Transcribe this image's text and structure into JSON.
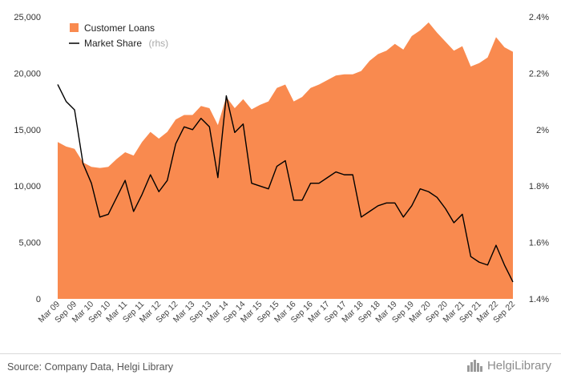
{
  "chart_data": {
    "type": "area",
    "x": [
      "Mar 09",
      "Jun 09",
      "Sep 09",
      "Dec 09",
      "Mar 10",
      "Jun 10",
      "Sep 10",
      "Dec 10",
      "Mar 11",
      "Jun 11",
      "Sep 11",
      "Dec 11",
      "Mar 12",
      "Jun 12",
      "Sep 12",
      "Dec 12",
      "Mar 13",
      "Jun 13",
      "Sep 13",
      "Dec 13",
      "Mar 14",
      "Jun 14",
      "Sep 14",
      "Dec 14",
      "Mar 15",
      "Jun 15",
      "Sep 15",
      "Dec 15",
      "Mar 16",
      "Jun 16",
      "Sep 16",
      "Dec 16",
      "Mar 17",
      "Jun 17",
      "Sep 17",
      "Dec 17",
      "Mar 18",
      "Jun 18",
      "Sep 18",
      "Dec 18",
      "Mar 19",
      "Jun 19",
      "Sep 19",
      "Dec 19",
      "Mar 20",
      "Jun 20",
      "Sep 20",
      "Dec 20",
      "Mar 21",
      "Jun 21",
      "Sep 21",
      "Dec 21",
      "Mar 22",
      "Jun 22",
      "Sep 22"
    ],
    "x_tick_labels": [
      "Mar 09",
      "Sep 09",
      "Mar 10",
      "Sep 10",
      "Mar 11",
      "Sep 11",
      "Mar 12",
      "Sep 12",
      "Mar 13",
      "Sep 13",
      "Mar 14",
      "Sep 14",
      "Mar 15",
      "Sep 15",
      "Mar 16",
      "Sep 16",
      "Mar 17",
      "Sep 17",
      "Mar 18",
      "Sep 18",
      "Mar 19",
      "Sep 19",
      "Mar 20",
      "Sep 20",
      "Mar 21",
      "Sep 21",
      "Mar 22",
      "Sep 22"
    ],
    "series": [
      {
        "name": "Customer Loans",
        "axis": "left",
        "type": "area",
        "color": "#f98a4f",
        "values": [
          13900,
          13500,
          13300,
          12100,
          11700,
          11600,
          11700,
          12400,
          13000,
          12700,
          13900,
          14800,
          14200,
          14800,
          15900,
          16300,
          16300,
          17100,
          16900,
          15400,
          17900,
          16900,
          17700,
          16800,
          17200,
          17500,
          18700,
          19000,
          17500,
          17900,
          18700,
          19000,
          19400,
          19800,
          19900,
          19900,
          20200,
          21100,
          21700,
          22000,
          22600,
          22100,
          23300,
          23800,
          24500,
          23600,
          22800,
          22000,
          22400,
          20600,
          20900,
          21400,
          23200,
          22300,
          21900
        ]
      },
      {
        "name": "Market Share",
        "name_suffix": "(rhs)",
        "axis": "right",
        "type": "line",
        "color": "#000000",
        "values": [
          2.16,
          2.1,
          2.07,
          1.88,
          1.81,
          1.69,
          1.7,
          1.76,
          1.82,
          1.71,
          1.77,
          1.84,
          1.78,
          1.82,
          1.95,
          2.01,
          2.0,
          2.04,
          2.01,
          1.83,
          2.12,
          1.99,
          2.02,
          1.81,
          1.8,
          1.79,
          1.87,
          1.89,
          1.75,
          1.75,
          1.81,
          1.81,
          1.83,
          1.85,
          1.84,
          1.84,
          1.69,
          1.71,
          1.73,
          1.74,
          1.74,
          1.69,
          1.73,
          1.79,
          1.78,
          1.76,
          1.72,
          1.67,
          1.7,
          1.55,
          1.53,
          1.52,
          1.59,
          1.52,
          1.46
        ]
      }
    ],
    "y_left": {
      "ticks": [
        0,
        5000,
        10000,
        15000,
        20000,
        25000
      ],
      "tick_labels": [
        "0",
        "5,000",
        "10,000",
        "15,000",
        "20,000",
        "25,000"
      ],
      "ylim": [
        0,
        25000
      ]
    },
    "y_right": {
      "ticks": [
        1.4,
        1.6,
        1.8,
        2.0,
        2.2,
        2.4
      ],
      "tick_labels": [
        "1.4%",
        "1.6%",
        "1.8%",
        "2%",
        "2.2%",
        "2.4%"
      ],
      "ylim": [
        1.4,
        2.4
      ]
    },
    "grid": false,
    "legend_position": "top-left"
  },
  "footer": {
    "source": "Source: Company Data, Helgi Library",
    "logo_text": "HelgiLibrary",
    "logo_icon": "helgi-library-logo-icon"
  }
}
